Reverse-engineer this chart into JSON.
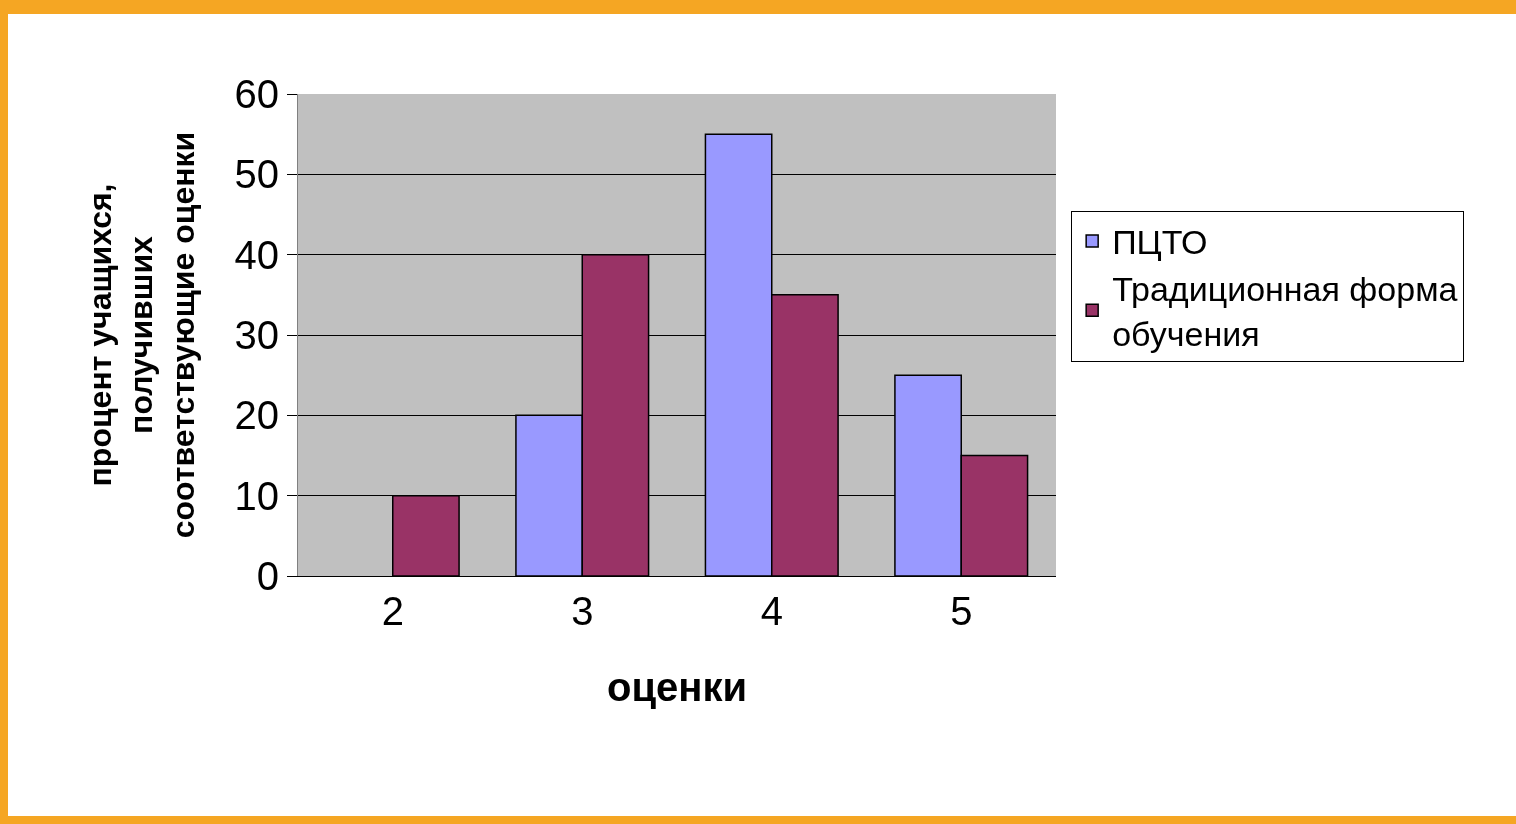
{
  "chart_data": {
    "type": "bar",
    "xlabel": "оценки",
    "ylabel": "процент учащихся,\nполучивших\nсоответствующие оценки",
    "categories": [
      "2",
      "3",
      "4",
      "5"
    ],
    "series": [
      {
        "name": "ПЦТО",
        "color": "#9999ff",
        "values": [
          null,
          20,
          55,
          25
        ]
      },
      {
        "name": "Традиционная форма\nобучения",
        "color": "#993366",
        "values": [
          10,
          40,
          35,
          15
        ]
      }
    ],
    "ylim": [
      0,
      60
    ],
    "yticks": [
      0,
      10,
      20,
      30,
      40,
      50,
      60
    ],
    "grid": "y",
    "legend": "right"
  }
}
